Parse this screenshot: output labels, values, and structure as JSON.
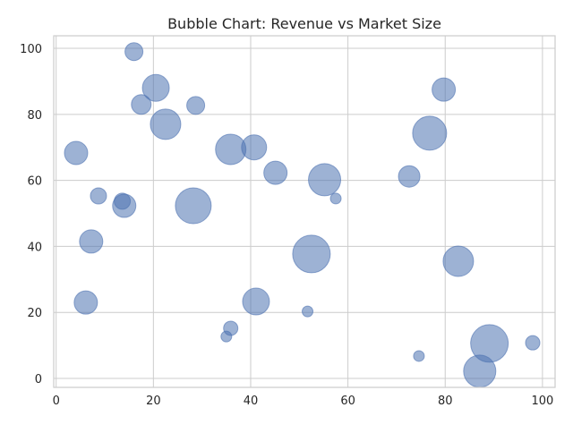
{
  "chart_data": {
    "type": "scatter",
    "subtype": "bubble",
    "title": "Bubble Chart: Revenue vs Market Size",
    "xlabel": "",
    "ylabel": "",
    "xlim": [
      -0.5,
      102.6
    ],
    "ylim": [
      -2.7,
      103.8
    ],
    "xticks": [
      0,
      20,
      40,
      60,
      80,
      100
    ],
    "yticks": [
      0,
      20,
      40,
      60,
      80,
      100
    ],
    "grid": true,
    "color": "#4c72b0",
    "alpha": 0.55,
    "points": [
      {
        "x": 16.0,
        "y": 99.0,
        "size": 200
      },
      {
        "x": 20.5,
        "y": 88.0,
        "size": 450
      },
      {
        "x": 17.5,
        "y": 83.0,
        "size": 242
      },
      {
        "x": 28.7,
        "y": 82.7,
        "size": 200
      },
      {
        "x": 22.5,
        "y": 77.0,
        "size": 578
      },
      {
        "x": 4.1,
        "y": 68.3,
        "size": 338
      },
      {
        "x": 8.7,
        "y": 55.3,
        "size": 162
      },
      {
        "x": 13.6,
        "y": 53.7,
        "size": 162
      },
      {
        "x": 14.0,
        "y": 52.3,
        "size": 338
      },
      {
        "x": 28.2,
        "y": 52.3,
        "size": 800
      },
      {
        "x": 7.2,
        "y": 41.5,
        "size": 338
      },
      {
        "x": 6.1,
        "y": 23.0,
        "size": 338
      },
      {
        "x": 35.9,
        "y": 69.4,
        "size": 578
      },
      {
        "x": 40.7,
        "y": 70.0,
        "size": 392
      },
      {
        "x": 45.1,
        "y": 62.3,
        "size": 338
      },
      {
        "x": 55.2,
        "y": 60.2,
        "size": 648
      },
      {
        "x": 57.5,
        "y": 54.5,
        "size": 72
      },
      {
        "x": 72.6,
        "y": 61.2,
        "size": 288
      },
      {
        "x": 76.8,
        "y": 74.3,
        "size": 722
      },
      {
        "x": 79.7,
        "y": 87.5,
        "size": 338
      },
      {
        "x": 52.5,
        "y": 37.7,
        "size": 882
      },
      {
        "x": 82.7,
        "y": 35.5,
        "size": 578
      },
      {
        "x": 41.1,
        "y": 23.3,
        "size": 450
      },
      {
        "x": 35.9,
        "y": 15.2,
        "size": 128
      },
      {
        "x": 35.0,
        "y": 12.7,
        "size": 72
      },
      {
        "x": 51.7,
        "y": 20.3,
        "size": 72
      },
      {
        "x": 74.6,
        "y": 6.8,
        "size": 72
      },
      {
        "x": 89.1,
        "y": 10.6,
        "size": 882
      },
      {
        "x": 87.1,
        "y": 2.2,
        "size": 648
      },
      {
        "x": 98.0,
        "y": 10.8,
        "size": 128
      }
    ]
  }
}
